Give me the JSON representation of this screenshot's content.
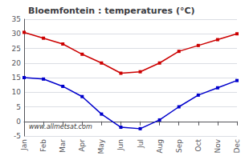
{
  "chart_data": {
    "type": "line",
    "title": "Bloemfontein : temperatures (°C)",
    "categories": [
      "Jan",
      "Feb",
      "Mar",
      "Apr",
      "May",
      "Jun",
      "Jul",
      "Aug",
      "Sep",
      "Oct",
      "Nov",
      "Dec"
    ],
    "series": [
      {
        "color": "#cc0000",
        "values": [
          30.5,
          28.5,
          26.5,
          23,
          20,
          16.5,
          17,
          20,
          24,
          26,
          28,
          30
        ]
      },
      {
        "color": "#0000cc",
        "values": [
          15,
          14.5,
          12,
          8.5,
          2.5,
          -2,
          -2.5,
          0.5,
          5,
          9,
          11.5,
          14
        ]
      }
    ],
    "marker": "square",
    "ylim": [
      -5,
      35
    ],
    "yticks": [
      -5,
      0,
      5,
      10,
      15,
      20,
      25,
      30,
      35
    ],
    "grid": true,
    "annotations": [
      {
        "text": "www.allmetsat.com"
      }
    ]
  }
}
